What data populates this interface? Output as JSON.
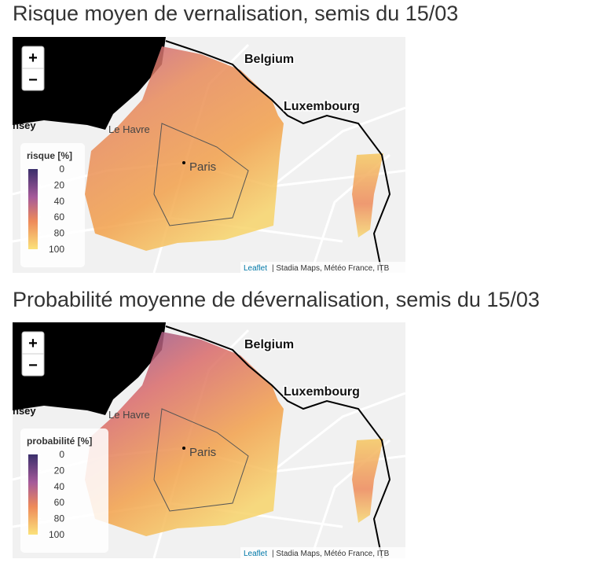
{
  "maps": [
    {
      "title": "Risque moyen de vernalisation, semis du 15/03",
      "zoom_in": "+",
      "zoom_out": "−",
      "labels": [
        "Belgium",
        "Luxembourg",
        "Le Havre",
        "Paris",
        "nsey"
      ],
      "legend": {
        "title": "risque [%]",
        "ticks": [
          0,
          20,
          40,
          60,
          80,
          100
        ]
      },
      "attribution": {
        "link": "Leaflet",
        "text": "| Stadia Maps, Météo France, ITB"
      }
    },
    {
      "title": "Probabilité moyenne de dévernalisation, semis du 15/03",
      "zoom_in": "+",
      "zoom_out": "−",
      "labels": [
        "Belgium",
        "Luxembourg",
        "Le Havre",
        "Paris",
        "nsey"
      ],
      "legend": {
        "title": "probabilité [%]",
        "ticks": [
          0,
          20,
          40,
          60,
          80,
          100
        ]
      },
      "attribution": {
        "link": "Leaflet",
        "text": "| Stadia Maps, Météo France, ITB"
      }
    }
  ]
}
